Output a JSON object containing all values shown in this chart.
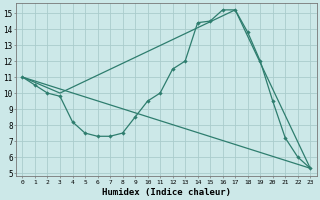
{
  "xlabel": "Humidex (Indice chaleur)",
  "bg_color": "#cce8e8",
  "grid_color": "#aacccc",
  "line_color": "#2e7d6e",
  "xlim": [
    -0.5,
    23.5
  ],
  "ylim": [
    4.8,
    15.6
  ],
  "xticks": [
    0,
    1,
    2,
    3,
    4,
    5,
    6,
    7,
    8,
    9,
    10,
    11,
    12,
    13,
    14,
    15,
    16,
    17,
    18,
    19,
    20,
    21,
    22,
    23
  ],
  "yticks": [
    5,
    6,
    7,
    8,
    9,
    10,
    11,
    12,
    13,
    14,
    15
  ],
  "line1": {
    "x": [
      0,
      1,
      2,
      3,
      4,
      5,
      6,
      7,
      8,
      9,
      10,
      11,
      12,
      13,
      14,
      15,
      16,
      17,
      18,
      19,
      20,
      21,
      22,
      23
    ],
    "y": [
      11.0,
      10.5,
      10.0,
      9.8,
      8.2,
      7.5,
      7.3,
      7.3,
      7.5,
      8.5,
      9.5,
      10.0,
      11.5,
      12.0,
      14.4,
      14.5,
      15.2,
      15.2,
      13.8,
      12.0,
      9.5,
      7.2,
      6.0,
      5.3
    ]
  },
  "line2": {
    "x": [
      0,
      23
    ],
    "y": [
      11.0,
      5.3
    ]
  },
  "line3": {
    "x": [
      0,
      3,
      17,
      23
    ],
    "y": [
      11.0,
      10.0,
      15.2,
      5.3
    ]
  }
}
